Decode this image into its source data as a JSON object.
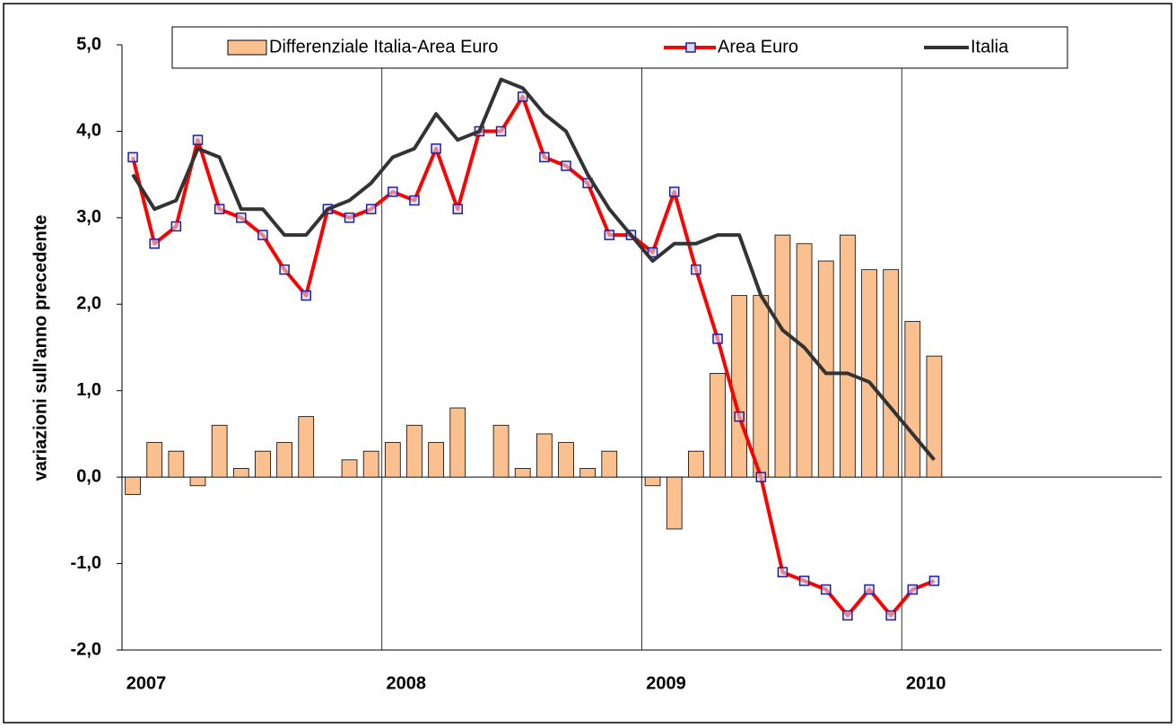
{
  "chart_data": {
    "type": "bar-line",
    "y_label": "variazioni sull'anno precedente",
    "categories": [
      "2007",
      null,
      null,
      null,
      null,
      null,
      null,
      null,
      null,
      null,
      null,
      null,
      "2008",
      null,
      null,
      null,
      null,
      null,
      null,
      null,
      null,
      null,
      null,
      null,
      "2009",
      null,
      null,
      null,
      null,
      null,
      null,
      null,
      null,
      null,
      null,
      null,
      "2010",
      null,
      null,
      null,
      null,
      null,
      null,
      null,
      null,
      null,
      null,
      null
    ],
    "series": [
      {
        "name": "Differenziale Italia-Area Euro",
        "kind": "bar",
        "color": "#fac08f",
        "values": [
          -0.2,
          0.4,
          0.3,
          -0.1,
          0.6,
          0.1,
          0.3,
          0.4,
          0.7,
          0.0,
          0.2,
          0.3,
          0.4,
          0.6,
          0.4,
          0.8,
          0.0,
          0.6,
          0.1,
          0.5,
          0.4,
          0.1,
          0.3,
          0.0,
          -0.1,
          -0.6,
          0.3,
          1.2,
          2.1,
          2.1,
          2.8,
          2.7,
          2.5,
          2.8,
          2.4,
          2.4,
          1.8,
          1.4,
          null,
          null,
          null,
          null,
          null,
          null,
          null,
          null,
          null,
          null
        ]
      },
      {
        "name": "Area Euro",
        "kind": "line",
        "color": "#ff0000",
        "marker_color": "#1f1f9f",
        "values": [
          3.7,
          2.7,
          2.9,
          3.9,
          3.1,
          3.0,
          2.8,
          2.4,
          2.1,
          3.1,
          3.0,
          3.1,
          3.3,
          3.2,
          3.8,
          3.1,
          4.0,
          4.0,
          4.4,
          3.7,
          3.6,
          3.4,
          2.8,
          2.8,
          2.6,
          3.3,
          2.4,
          1.6,
          0.7,
          0.0,
          -1.1,
          -1.2,
          -1.3,
          -1.6,
          -1.3,
          -1.6,
          -1.3,
          -1.2,
          null,
          null,
          null,
          null,
          null,
          null,
          null,
          null,
          null,
          null
        ]
      },
      {
        "name": "Italia",
        "kind": "line",
        "color": "#333333",
        "values": [
          3.5,
          3.1,
          3.2,
          3.8,
          3.7,
          3.1,
          3.1,
          2.8,
          2.8,
          3.1,
          3.2,
          3.4,
          3.7,
          3.8,
          4.2,
          3.9,
          4.0,
          4.6,
          4.5,
          4.2,
          4.0,
          3.5,
          3.1,
          2.8,
          2.5,
          2.7,
          2.7,
          2.8,
          2.8,
          2.1,
          1.7,
          1.5,
          1.2,
          1.2,
          1.1,
          0.8,
          0.5,
          0.2,
          null,
          null,
          null,
          null,
          null,
          null,
          null,
          null,
          null,
          null
        ]
      }
    ],
    "ylim": [
      -2,
      5
    ],
    "yticks": [
      {
        "value": -2,
        "label": "-2,0"
      },
      {
        "value": -1,
        "label": "-1,0"
      },
      {
        "value": 0,
        "label": "0,0"
      },
      {
        "value": 1,
        "label": "1,0"
      },
      {
        "value": 2,
        "label": "2,0"
      },
      {
        "value": 3,
        "label": "3,0"
      },
      {
        "value": 4,
        "label": "4,0"
      },
      {
        "value": 5,
        "label": "5,0"
      }
    ],
    "legend": "top",
    "grid": "year"
  }
}
